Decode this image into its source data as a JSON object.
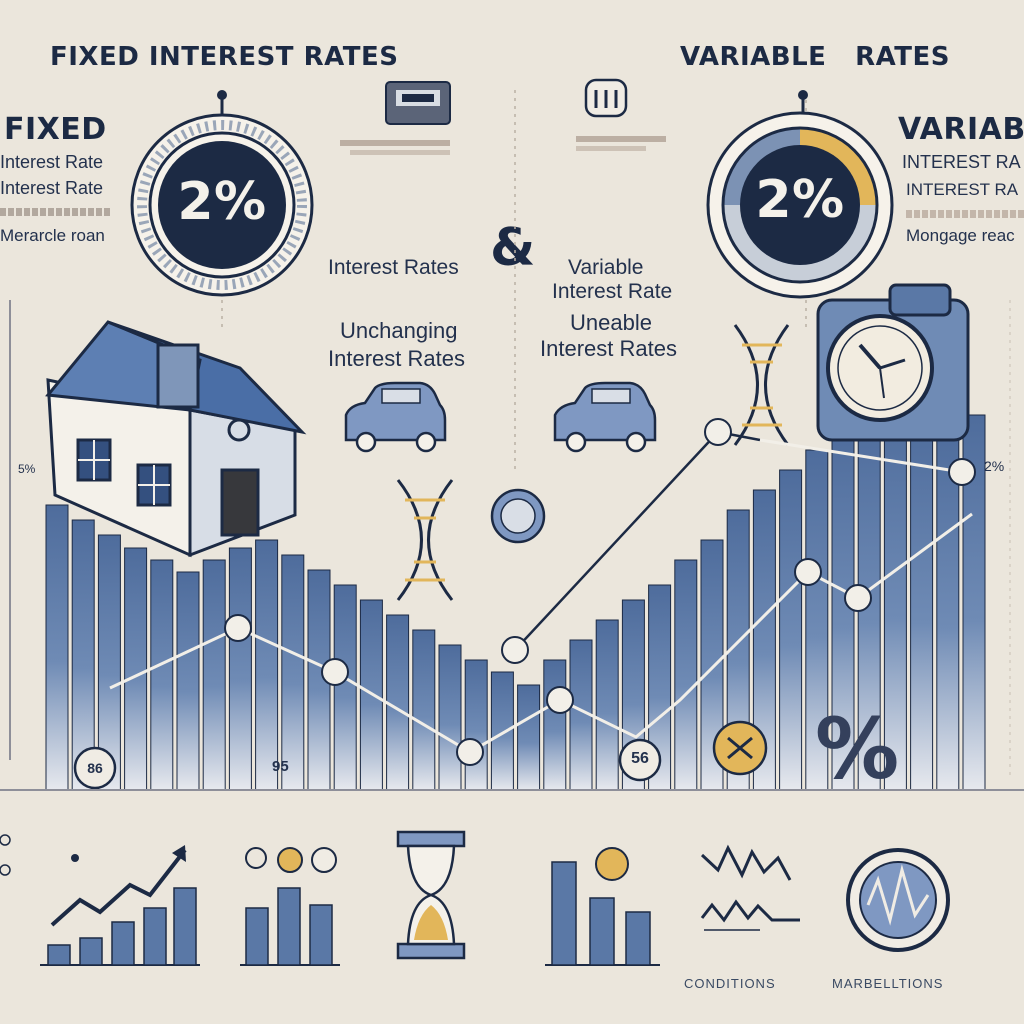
{
  "header": {
    "left_title": "FIXED INTEREST RATES",
    "right_title": "VARIABLE   RATES"
  },
  "left_panel": {
    "title": "FIXED",
    "line1": "Interest Rate",
    "line2": "Interest Rate",
    "line3": "Merarcle roan",
    "gauge_value": "2%"
  },
  "right_panel": {
    "title": "VARIABL",
    "line1": "INTEREST RA",
    "line2": "INTEREST RA",
    "line3": "Mongage reac",
    "gauge_value": "2%"
  },
  "center": {
    "ampersand": "&",
    "left_label": "Interest Rates",
    "right_label_1": "Variable",
    "right_label_2": "Interest Rate",
    "left_sub_1": "Unchanging",
    "left_sub_2": "Interest Rates",
    "right_sub_1": "Uneable",
    "right_sub_2": "Interest Rates"
  },
  "chart": {
    "left_axis_label": "5%",
    "right_axis_label": "2%",
    "coin_left": "86",
    "coin_mid": "95",
    "coin_right": "56",
    "big_percent": "%"
  },
  "bottom": {
    "captions": [
      "CONDITIONS",
      "MARBELLTIONS"
    ]
  },
  "colors": {
    "background": "#ebe6dc",
    "navy": "#1c2a44",
    "bar_blue": "#5a78a6",
    "gold": "#e2b65a"
  }
}
